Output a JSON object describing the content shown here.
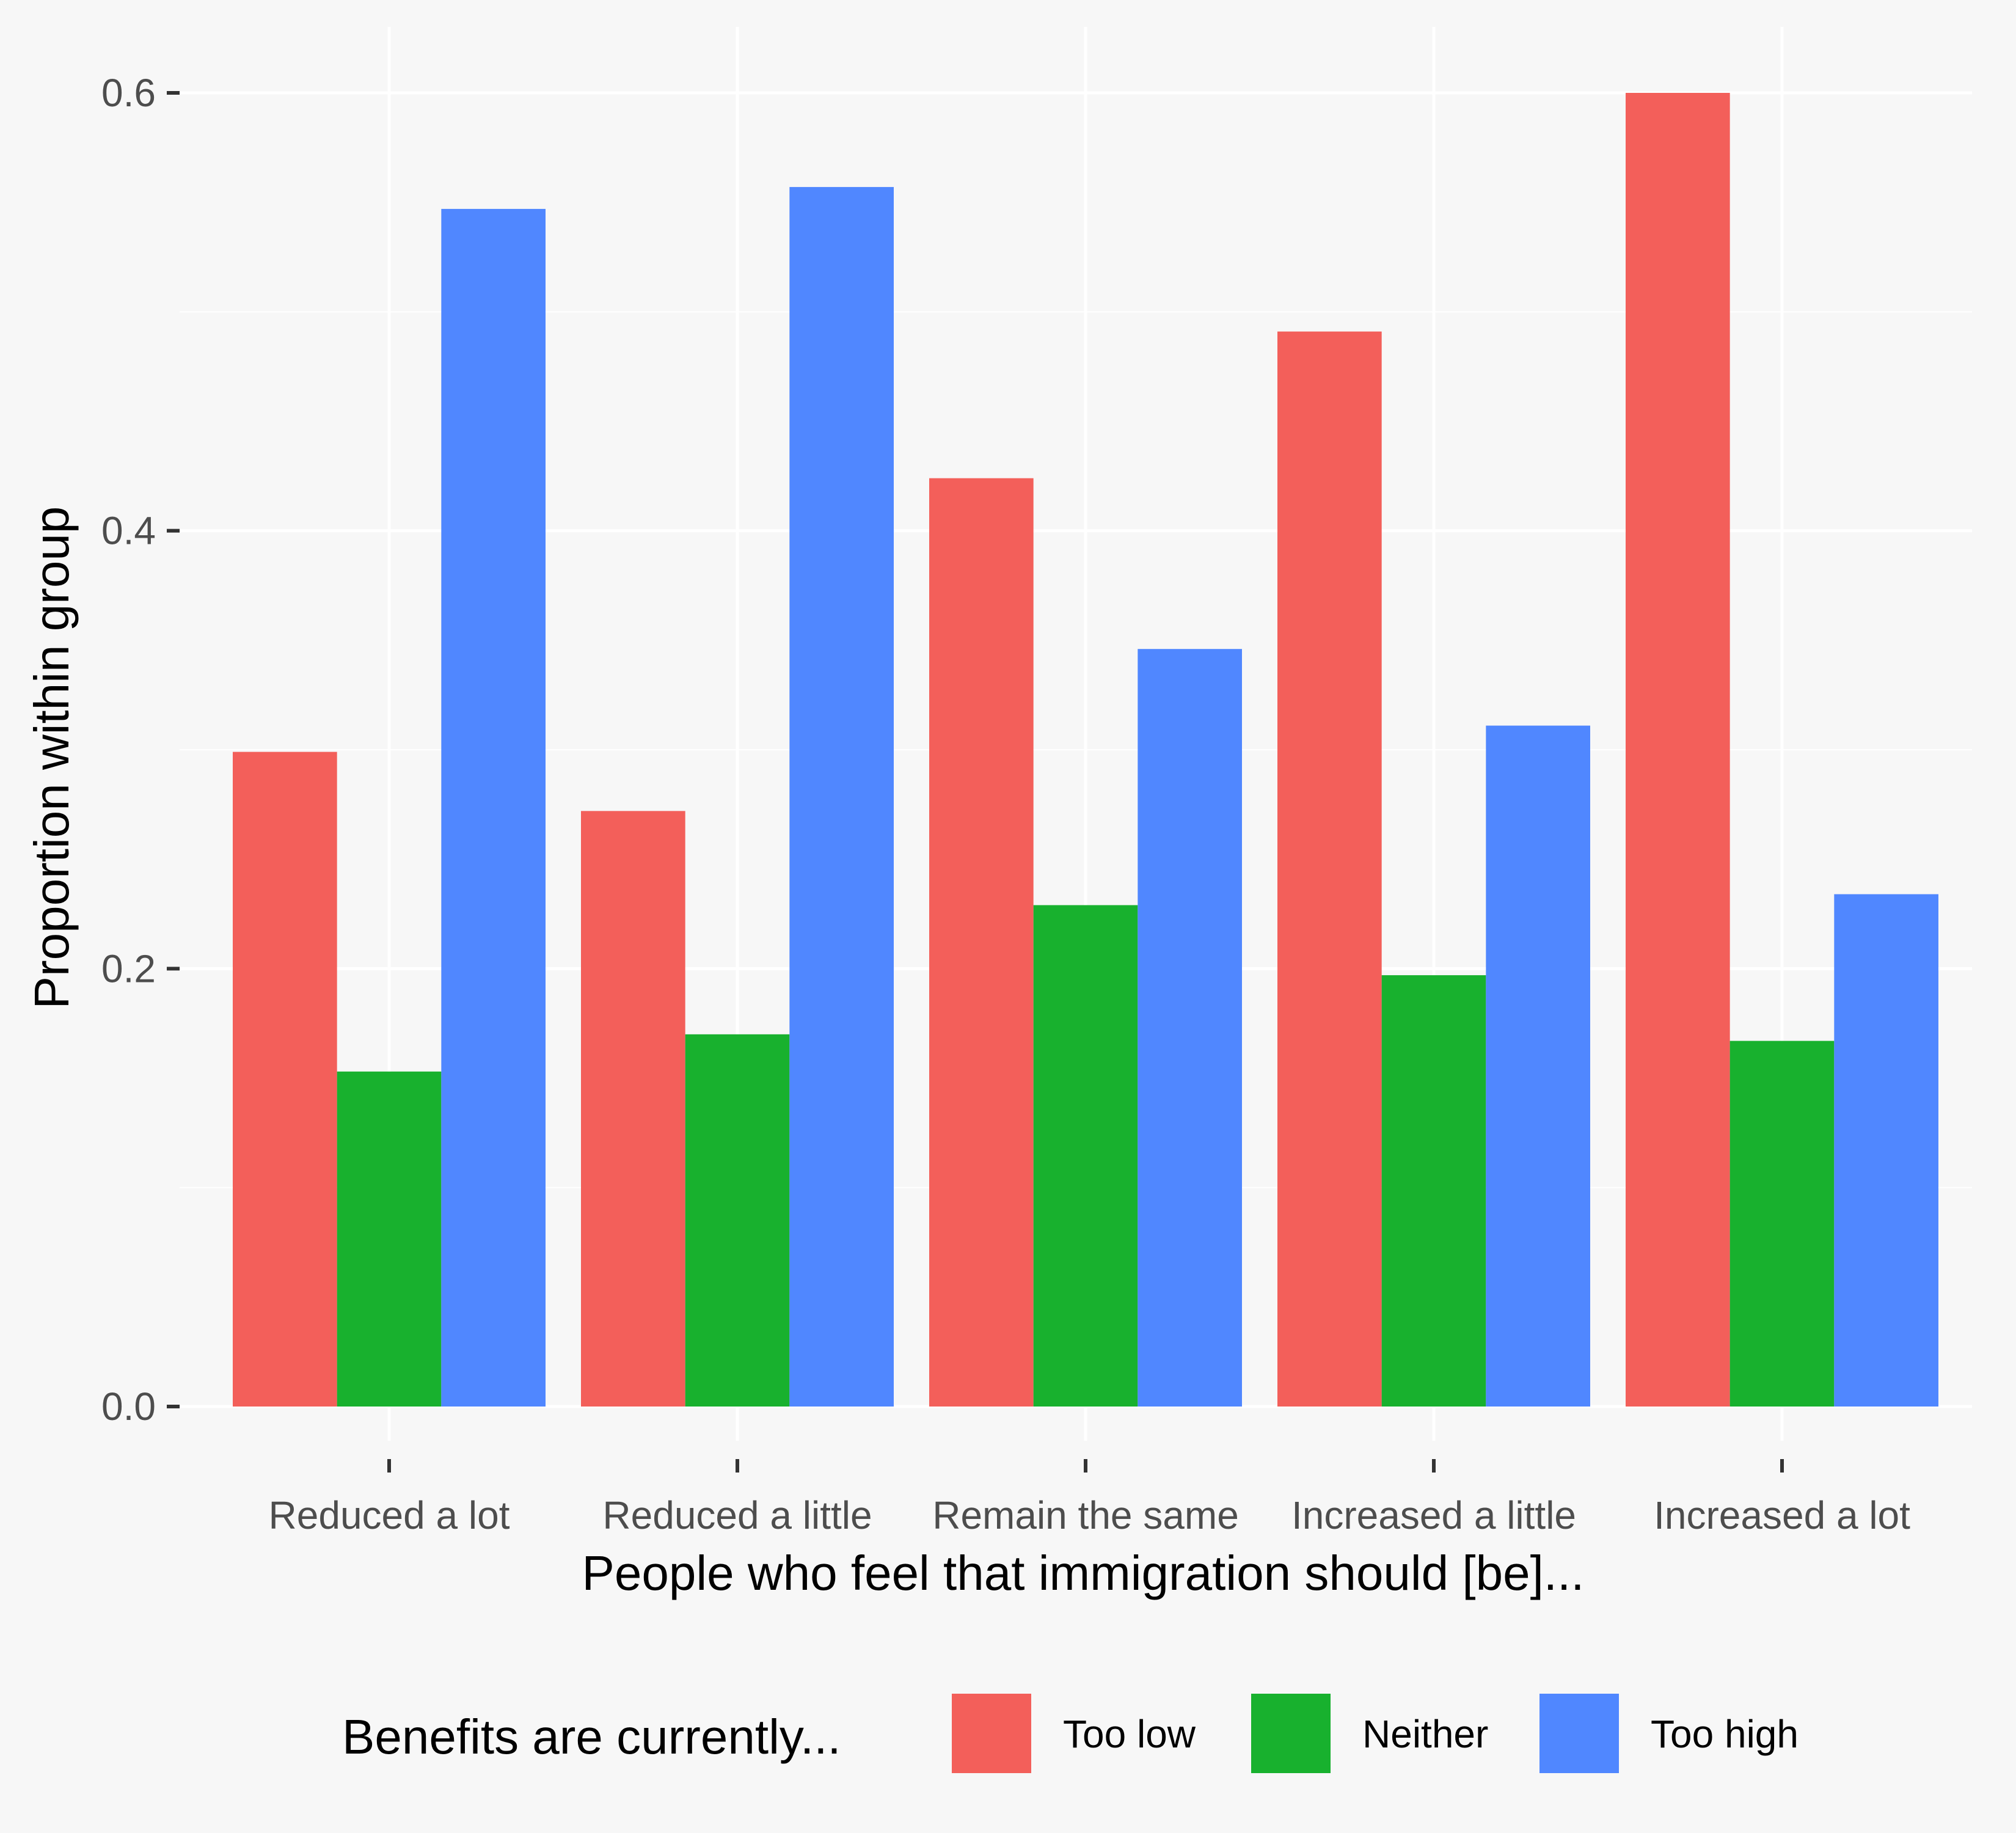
{
  "chart_data": {
    "type": "bar",
    "xlabel": "People who feel that immigration should [be]...",
    "ylabel": "Proportion within group",
    "ylim": [
      0,
      0.6
    ],
    "yticks": [
      "0.0",
      "0.2",
      "0.4",
      "0.6"
    ],
    "ytick_values": [
      0,
      0.2,
      0.4,
      0.6
    ],
    "grid": true,
    "legend_position": "bottom",
    "legend_title": "Benefits are currently...",
    "categories": [
      "Reduced a lot",
      "Reduced a little",
      "Remain the same",
      "Increased a little",
      "Increased a lot"
    ],
    "series": [
      {
        "name": "Too low",
        "color": "#F35F5A",
        "values": [
          0.299,
          0.272,
          0.424,
          0.491,
          0.6
        ]
      },
      {
        "name": "Neither",
        "color": "#18B12E",
        "values": [
          0.153,
          0.17,
          0.229,
          0.197,
          0.167
        ]
      },
      {
        "name": "Too high",
        "color": "#5087FF",
        "values": [
          0.547,
          0.557,
          0.346,
          0.311,
          0.234
        ]
      }
    ]
  },
  "colors": {
    "background": "#f7f7f7",
    "grid": "#ffffff"
  }
}
